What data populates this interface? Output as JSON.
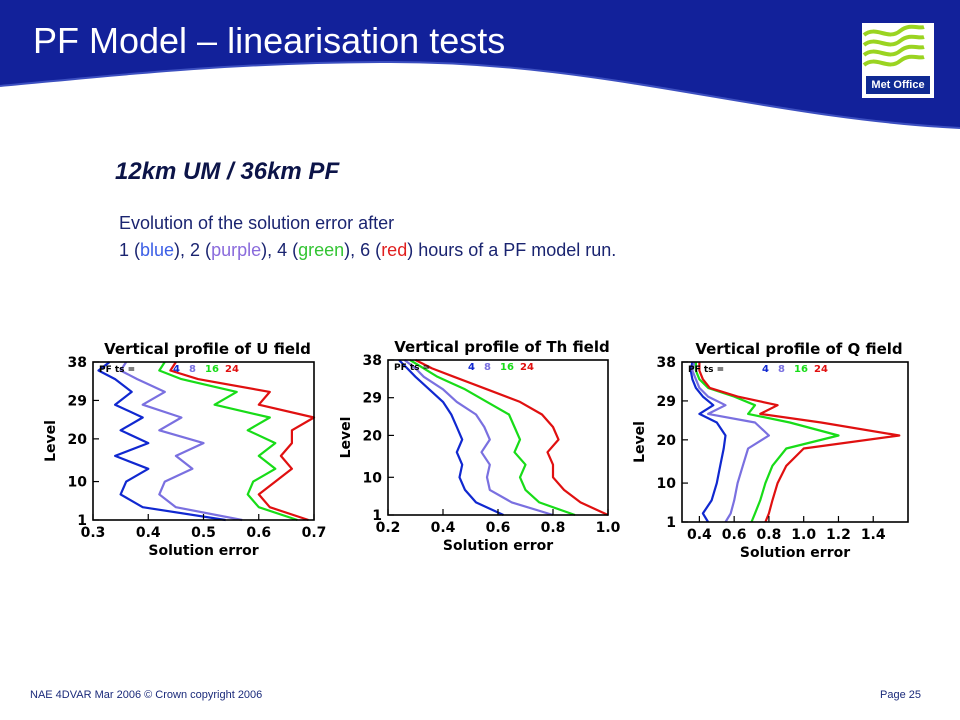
{
  "slide": {
    "title": "PF Model – linearisation tests",
    "subtitle": "12km UM / 36km PF",
    "description_line1": "Evolution of the solution error after",
    "description_line2": {
      "p1": "1 (",
      "blue": "blue",
      "p2": "), 2 (",
      "purple": "purple",
      "p3": "), 4 (",
      "green": "green",
      "p4": "), 6 (",
      "red": "red",
      "p5": ") hours of a PF model run."
    }
  },
  "logo": {
    "text": "Met Office"
  },
  "footer": {
    "left": "NAE 4DVAR Mar 2006 © Crown copyright 2006",
    "right": "Page 25"
  },
  "colors": {
    "header_blue": "#12219a",
    "blue": "#1028d0",
    "purple": "#7a70e0",
    "green": "#18dc18",
    "red": "#e01010"
  },
  "chart_data": [
    {
      "type": "line",
      "title": "Vertical profile of U field",
      "xlabel": "Solution error",
      "ylabel": "Level",
      "xlim": [
        0.3,
        0.7
      ],
      "ylim": [
        1,
        38
      ],
      "xticks": [
        "0.3",
        "0.4",
        "0.5",
        "0.6",
        "0.7"
      ],
      "yticks": [
        "1",
        "10",
        "20",
        "29",
        "38"
      ],
      "legend_prefix": "PF ts =",
      "series": [
        {
          "name": "4",
          "color": "#1028d0",
          "levels": [
            1,
            4,
            7,
            10,
            13,
            16,
            19,
            22,
            25,
            28,
            31,
            34,
            36,
            38
          ],
          "values": [
            0.54,
            0.39,
            0.35,
            0.36,
            0.4,
            0.34,
            0.4,
            0.35,
            0.39,
            0.34,
            0.37,
            0.34,
            0.31,
            0.33
          ]
        },
        {
          "name": "8",
          "color": "#7a70e0",
          "levels": [
            1,
            4,
            7,
            10,
            13,
            16,
            19,
            22,
            25,
            28,
            31,
            34,
            36,
            38
          ],
          "values": [
            0.57,
            0.45,
            0.42,
            0.43,
            0.48,
            0.45,
            0.5,
            0.42,
            0.46,
            0.39,
            0.43,
            0.38,
            0.35,
            0.36
          ]
        },
        {
          "name": "16",
          "color": "#18dc18",
          "levels": [
            1,
            4,
            7,
            10,
            13,
            16,
            19,
            22,
            25,
            28,
            31,
            34,
            36,
            38
          ],
          "values": [
            0.67,
            0.6,
            0.58,
            0.59,
            0.63,
            0.6,
            0.63,
            0.58,
            0.62,
            0.52,
            0.56,
            0.46,
            0.42,
            0.43
          ]
        },
        {
          "name": "24",
          "color": "#e01010",
          "levels": [
            1,
            4,
            7,
            10,
            13,
            16,
            19,
            22,
            25,
            28,
            31,
            34,
            36,
            38
          ],
          "values": [
            0.69,
            0.62,
            0.6,
            0.63,
            0.66,
            0.64,
            0.66,
            0.66,
            0.7,
            0.6,
            0.62,
            0.49,
            0.44,
            0.45
          ]
        }
      ]
    },
    {
      "type": "line",
      "title": "Vertical profile of Th field",
      "xlabel": "Solution error",
      "ylabel": "Level",
      "xlim": [
        0.2,
        1.0
      ],
      "ylim": [
        1,
        38
      ],
      "xticks": [
        "0.2",
        "0.4",
        "0.6",
        "0.8",
        "1.0"
      ],
      "yticks": [
        "1",
        "10",
        "20",
        "29",
        "38"
      ],
      "legend_prefix": "PF ts =",
      "series": [
        {
          "name": "4",
          "color": "#1028d0",
          "levels": [
            1,
            4,
            7,
            10,
            13,
            16,
            19,
            22,
            25,
            28,
            31,
            34,
            36,
            38
          ],
          "values": [
            0.62,
            0.52,
            0.48,
            0.46,
            0.47,
            0.45,
            0.47,
            0.45,
            0.43,
            0.4,
            0.35,
            0.3,
            0.27,
            0.24
          ]
        },
        {
          "name": "8",
          "color": "#7a70e0",
          "levels": [
            1,
            4,
            7,
            10,
            13,
            16,
            19,
            22,
            25,
            28,
            31,
            34,
            36,
            38
          ],
          "values": [
            0.8,
            0.65,
            0.57,
            0.56,
            0.57,
            0.54,
            0.57,
            0.55,
            0.52,
            0.45,
            0.4,
            0.33,
            0.3,
            0.26
          ]
        },
        {
          "name": "16",
          "color": "#18dc18",
          "levels": [
            1,
            4,
            7,
            10,
            13,
            16,
            19,
            22,
            25,
            28,
            31,
            34,
            36,
            38
          ],
          "values": [
            0.88,
            0.75,
            0.7,
            0.68,
            0.7,
            0.66,
            0.68,
            0.66,
            0.64,
            0.56,
            0.48,
            0.38,
            0.33,
            0.28
          ]
        },
        {
          "name": "24",
          "color": "#e01010",
          "levels": [
            1,
            4,
            7,
            10,
            13,
            16,
            19,
            22,
            25,
            28,
            31,
            34,
            36,
            38
          ],
          "values": [
            1.0,
            0.9,
            0.84,
            0.8,
            0.8,
            0.78,
            0.82,
            0.8,
            0.76,
            0.68,
            0.56,
            0.44,
            0.36,
            0.3
          ]
        }
      ]
    },
    {
      "type": "line",
      "title": "Vertical profile of Q field",
      "xlabel": "Solution error",
      "ylabel": "Level",
      "xlim": [
        0.3,
        1.6
      ],
      "ylim": [
        1,
        38
      ],
      "xticks": [
        "0.4",
        "0.6",
        "0.8",
        "1.0",
        "1.2",
        "1.4"
      ],
      "yticks": [
        "1",
        "10",
        "20",
        "29",
        "38"
      ],
      "legend_prefix": "PF ts =",
      "series": [
        {
          "name": "4",
          "color": "#1028d0",
          "levels": [
            1,
            3,
            6,
            10,
            14,
            18,
            21,
            24,
            26,
            28,
            30,
            32,
            34,
            36,
            38
          ],
          "values": [
            0.45,
            0.42,
            0.47,
            0.5,
            0.52,
            0.54,
            0.55,
            0.5,
            0.4,
            0.48,
            0.42,
            0.38,
            0.36,
            0.35,
            0.36
          ]
        },
        {
          "name": "8",
          "color": "#7a70e0",
          "levels": [
            1,
            3,
            6,
            10,
            14,
            18,
            21,
            24,
            26,
            28,
            30,
            32,
            34,
            36,
            38
          ],
          "values": [
            0.55,
            0.58,
            0.6,
            0.62,
            0.65,
            0.68,
            0.8,
            0.72,
            0.45,
            0.55,
            0.45,
            0.4,
            0.38,
            0.36,
            0.37
          ]
        },
        {
          "name": "16",
          "color": "#18dc18",
          "levels": [
            1,
            3,
            6,
            10,
            14,
            18,
            21,
            24,
            26,
            28,
            30,
            32,
            34,
            36,
            38
          ],
          "values": [
            0.7,
            0.72,
            0.75,
            0.78,
            0.82,
            0.9,
            1.2,
            0.92,
            0.68,
            0.72,
            0.6,
            0.45,
            0.4,
            0.38,
            0.38
          ]
        },
        {
          "name": "24",
          "color": "#e01010",
          "levels": [
            1,
            3,
            6,
            10,
            14,
            18,
            21,
            24,
            26,
            28,
            30,
            32,
            34,
            36,
            38
          ],
          "values": [
            0.78,
            0.8,
            0.82,
            0.85,
            0.9,
            1.0,
            1.55,
            1.1,
            0.75,
            0.85,
            0.62,
            0.46,
            0.42,
            0.4,
            0.4
          ]
        }
      ]
    }
  ]
}
